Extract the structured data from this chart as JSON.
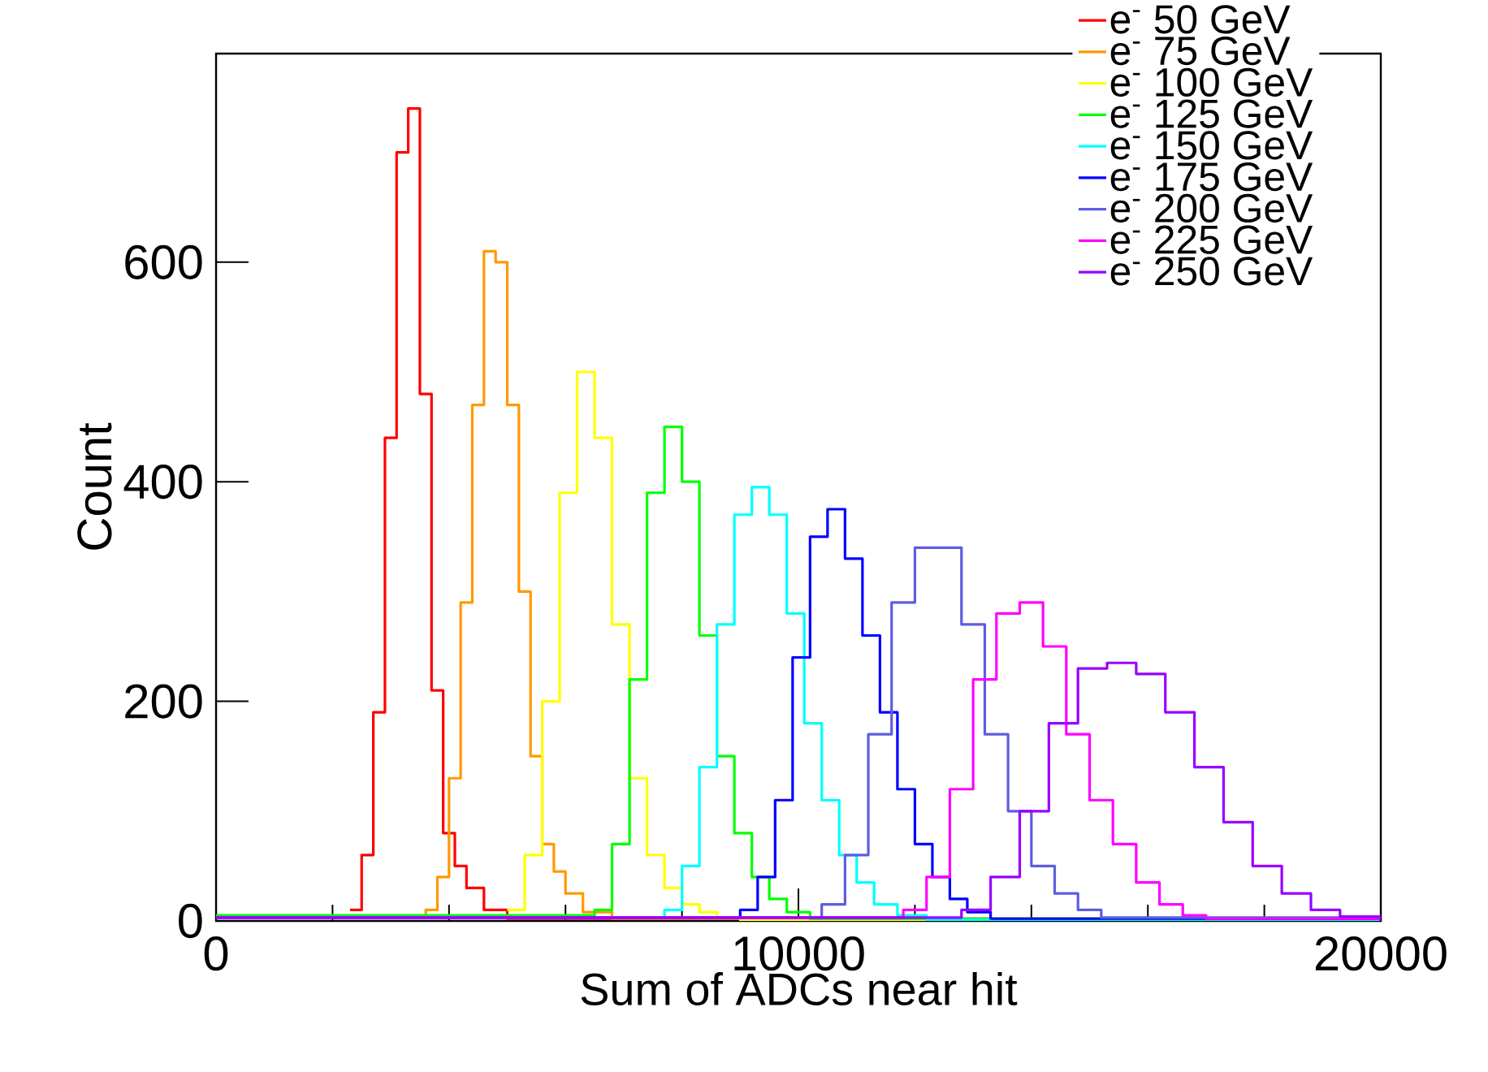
{
  "chart_data": {
    "type": "step",
    "xlabel": "Sum of ADCs near hit",
    "ylabel": "Count",
    "xlim": [
      0,
      20000
    ],
    "ylim": [
      0,
      790
    ],
    "xticks": [
      0,
      10000,
      20000
    ],
    "yticks": [
      0,
      200,
      400,
      600
    ],
    "grid": false,
    "legend": "top right",
    "series": [
      {
        "name": "e$^{-}$ 50 GeV",
        "color": "#ff0000",
        "x": [
          2300,
          2500,
          2700,
          2900,
          3100,
          3300,
          3500,
          3700,
          3900,
          4100,
          4300,
          4600,
          5000,
          20000
        ],
        "values": [
          10,
          60,
          190,
          440,
          700,
          740,
          480,
          210,
          80,
          50,
          30,
          10,
          2,
          0
        ]
      },
      {
        "name": "e$^{-}$ 75 GeV",
        "color": "#ff9900",
        "x": [
          0,
          3600,
          3800,
          4000,
          4200,
          4400,
          4600,
          4800,
          5000,
          5200,
          5400,
          5600,
          5800,
          6000,
          6300,
          6800,
          20000
        ],
        "values": [
          3,
          10,
          40,
          130,
          290,
          470,
          610,
          600,
          470,
          300,
          150,
          70,
          45,
          25,
          8,
          2,
          0
        ]
      },
      {
        "name": "e$^{-}$ 100 GeV",
        "color": "#ffff00",
        "x": [
          5000,
          5300,
          5600,
          5900,
          6200,
          6500,
          6800,
          7100,
          7400,
          7700,
          8000,
          8300,
          8600,
          9000,
          20000
        ],
        "values": [
          10,
          60,
          200,
          390,
          500,
          440,
          270,
          130,
          60,
          30,
          15,
          8,
          3,
          1,
          0
        ]
      },
      {
        "name": "e$^{-}$ 125 GeV",
        "color": "#00ff00",
        "x": [
          0,
          6500,
          6800,
          7100,
          7400,
          7700,
          8000,
          8300,
          8600,
          8900,
          9200,
          9500,
          9800,
          10200,
          20000
        ],
        "values": [
          5,
          10,
          70,
          220,
          390,
          450,
          400,
          260,
          150,
          80,
          40,
          20,
          8,
          2,
          0
        ]
      },
      {
        "name": "e$^{-}$ 150 GeV",
        "color": "#00ffff",
        "x": [
          0,
          7700,
          8000,
          8300,
          8600,
          8900,
          9200,
          9500,
          9800,
          10100,
          10400,
          10700,
          11000,
          11300,
          11700,
          12200,
          20000
        ],
        "values": [
          3,
          10,
          50,
          140,
          270,
          370,
          395,
          370,
          280,
          180,
          110,
          60,
          35,
          15,
          5,
          1,
          0
        ]
      },
      {
        "name": "e$^{-}$ 175 GeV",
        "color": "#0000ff",
        "x": [
          0,
          9000,
          9300,
          9600,
          9900,
          10200,
          10500,
          10800,
          11100,
          11400,
          11700,
          12000,
          12300,
          12600,
          12900,
          13300,
          20000
        ],
        "values": [
          3,
          10,
          40,
          110,
          240,
          350,
          375,
          330,
          260,
          190,
          120,
          70,
          40,
          20,
          8,
          2,
          0
        ]
      },
      {
        "name": "e$^{-}$ 200 GeV",
        "color": "#5d5de0",
        "x": [
          0,
          10400,
          10800,
          11200,
          11600,
          12000,
          12400,
          12800,
          13200,
          13600,
          14000,
          14400,
          14800,
          15200,
          20000
        ],
        "values": [
          3,
          15,
          60,
          170,
          290,
          340,
          340,
          270,
          170,
          100,
          50,
          25,
          10,
          3,
          0
        ]
      },
      {
        "name": "e$^{-}$ 225 GeV",
        "color": "#ff00ff",
        "x": [
          0,
          11800,
          12200,
          12600,
          13000,
          13400,
          13800,
          14200,
          14600,
          15000,
          15400,
          15800,
          16200,
          16600,
          17000,
          20000
        ],
        "values": [
          3,
          10,
          40,
          120,
          220,
          280,
          290,
          250,
          170,
          110,
          70,
          35,
          15,
          5,
          2,
          0
        ]
      },
      {
        "name": "e$^{-}$ 250 GeV",
        "color": "#9900ff",
        "x": [
          0,
          12800,
          13300,
          13800,
          14300,
          14800,
          15300,
          15800,
          16300,
          16800,
          17300,
          17800,
          18300,
          18800,
          19300,
          20000
        ],
        "values": [
          3,
          10,
          40,
          100,
          180,
          230,
          235,
          225,
          190,
          140,
          90,
          50,
          25,
          10,
          4,
          0
        ]
      }
    ]
  }
}
